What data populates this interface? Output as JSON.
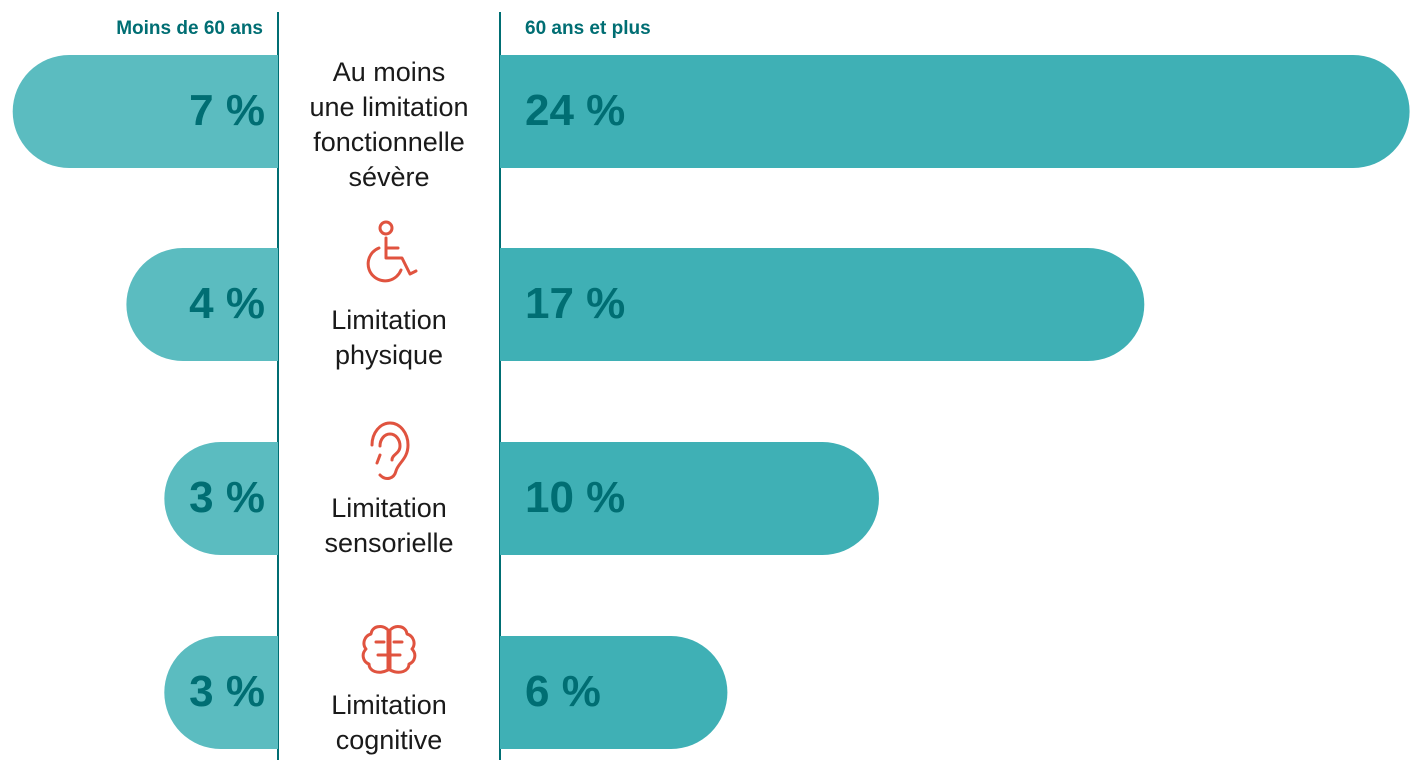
{
  "chart_data": {
    "type": "butterfly",
    "categories": [
      "Au moins\nune limitation\nfonctionnelle\nsévère",
      "Limitation\nphysique",
      "Limitation\nsensorielle",
      "Limitation\ncognitive"
    ],
    "series": [
      {
        "name": "Moins de 60 ans",
        "color": "#5bbcc0",
        "values": [
          7,
          4,
          3,
          3
        ],
        "value_labels": [
          "7 %",
          "4 %",
          "3 %",
          "3 %"
        ]
      },
      {
        "name": "60 ans et plus",
        "color": "#3fb0b5",
        "values": [
          24,
          17,
          10,
          6
        ],
        "value_labels": [
          "24 %",
          "17 %",
          "10 %",
          "6 %"
        ]
      }
    ]
  }
}
